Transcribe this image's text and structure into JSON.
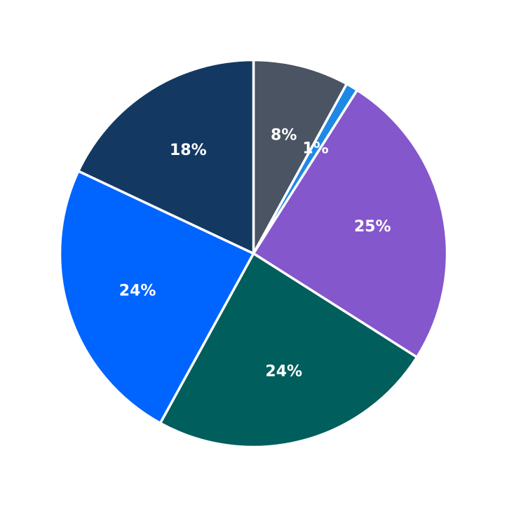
{
  "chart_data": {
    "type": "pie",
    "title": "",
    "start_angle_deg": 90,
    "direction": "clockwise",
    "legend": "none",
    "slices": [
      {
        "value": 8,
        "label": "8%",
        "color": "#4a5462"
      },
      {
        "value": 1,
        "label": "1%",
        "color": "#1e88e5"
      },
      {
        "value": 25,
        "label": "25%",
        "color": "#8457cc"
      },
      {
        "value": 24,
        "label": "24%",
        "color": "#005e5d"
      },
      {
        "value": 24,
        "label": "24%",
        "color": "#0064ff"
      },
      {
        "value": 18,
        "label": "18%",
        "color": "#133962"
      }
    ]
  }
}
